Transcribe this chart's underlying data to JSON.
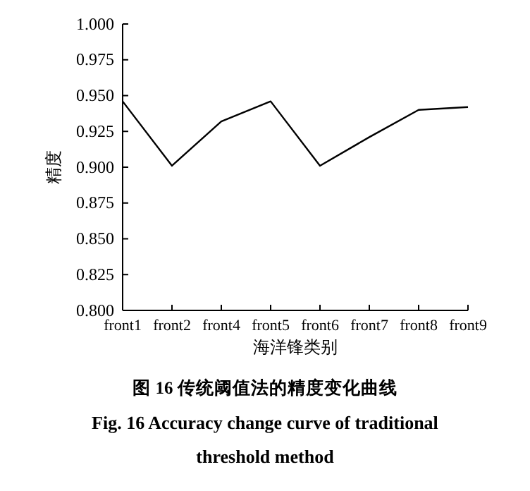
{
  "chart_data": {
    "type": "line",
    "title": "图 16  传统阈值法的精度变化曲线",
    "subtitle": "Fig. 16  Accuracy change curve of traditional threshold method",
    "xlabel": "海洋锋类别",
    "ylabel": "精度",
    "categories": [
      "front1",
      "front2",
      "front4",
      "front5",
      "front6",
      "front7",
      "front8",
      "front9"
    ],
    "series": [
      {
        "color": "#000000",
        "values": [
          0.946,
          0.901,
          0.932,
          0.946,
          0.901,
          0.921,
          0.94,
          0.942
        ]
      }
    ],
    "ylim": [
      0.8,
      1.0
    ],
    "yticks": [
      {
        "value": 0.8,
        "label": "0.800"
      },
      {
        "value": 0.825,
        "label": "0.825"
      },
      {
        "value": 0.85,
        "label": "0.850"
      },
      {
        "value": 0.875,
        "label": "0.875"
      },
      {
        "value": 0.9,
        "label": "0.900"
      },
      {
        "value": 0.925,
        "label": "0.925"
      },
      {
        "value": 0.95,
        "label": "0.950"
      },
      {
        "value": 0.975,
        "label": "0.975"
      },
      {
        "value": 1.0,
        "label": "1.000"
      }
    ],
    "grid": false,
    "marker": "none",
    "line_style": "solid"
  }
}
